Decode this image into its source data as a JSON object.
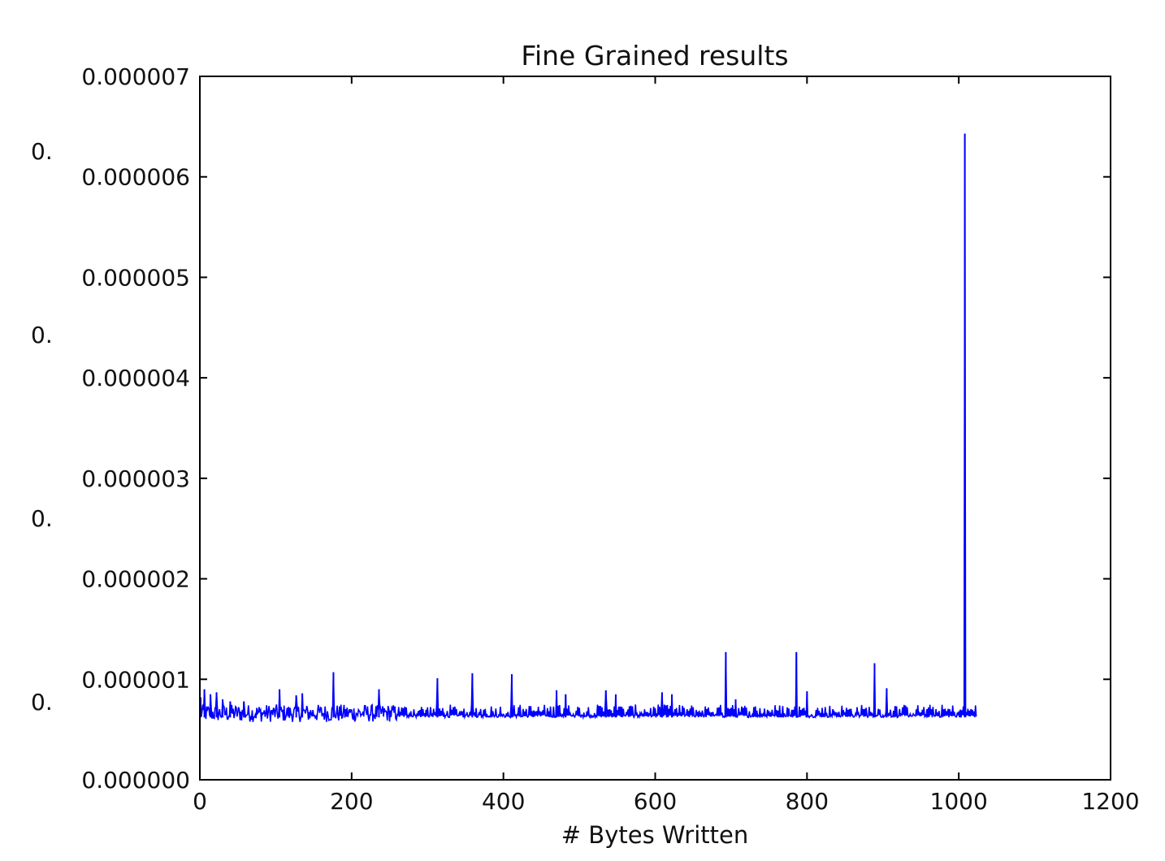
{
  "chart_data": {
    "type": "line",
    "title": "Fine Grained results",
    "xlabel": "# Bytes Written",
    "ylabel": "",
    "xlim": [
      0,
      1200
    ],
    "ylim": [
      0,
      7e-06
    ],
    "xticks": [
      "0",
      "200",
      "400",
      "600",
      "800",
      "1000",
      "1200"
    ],
    "yticks": [
      "0.000000",
      "0.000001",
      "0.000002",
      "0.000003",
      "0.000004",
      "0.000005",
      "0.000006",
      "0.000007"
    ],
    "background_axis_tick_fragments": [
      "0.",
      "0.",
      "0.",
      "0."
    ],
    "grid": false,
    "series": [
      {
        "color": "#0000ff",
        "x_range": [
          0,
          1023
        ],
        "baseline": 6.2e-07,
        "typical_max": 7.5e-07,
        "spikes": [
          {
            "x": 1,
            "y": 8.2e-07
          },
          {
            "x": 6,
            "y": 9e-07
          },
          {
            "x": 14,
            "y": 8.5e-07
          },
          {
            "x": 22,
            "y": 8.7e-07
          },
          {
            "x": 30,
            "y": 8e-07
          },
          {
            "x": 40,
            "y": 7.8e-07
          },
          {
            "x": 58,
            "y": 7.8e-07
          },
          {
            "x": 105,
            "y": 9e-07
          },
          {
            "x": 127,
            "y": 8.4e-07
          },
          {
            "x": 135,
            "y": 8.6e-07
          },
          {
            "x": 176,
            "y": 1.07e-06
          },
          {
            "x": 236,
            "y": 9e-07
          },
          {
            "x": 313,
            "y": 1.01e-06
          },
          {
            "x": 359,
            "y": 1.06e-06
          },
          {
            "x": 411,
            "y": 1.05e-06
          },
          {
            "x": 470,
            "y": 8.9e-07
          },
          {
            "x": 482,
            "y": 8.5e-07
          },
          {
            "x": 535,
            "y": 8.9e-07
          },
          {
            "x": 548,
            "y": 8.5e-07
          },
          {
            "x": 609,
            "y": 8.7e-07
          },
          {
            "x": 622,
            "y": 8.5e-07
          },
          {
            "x": 693,
            "y": 1.27e-06
          },
          {
            "x": 706,
            "y": 8e-07
          },
          {
            "x": 786,
            "y": 1.27e-06
          },
          {
            "x": 800,
            "y": 8.8e-07
          },
          {
            "x": 889,
            "y": 1.16e-06
          },
          {
            "x": 905,
            "y": 9.1e-07
          },
          {
            "x": 1008,
            "y": 6.43e-06
          }
        ]
      }
    ]
  }
}
